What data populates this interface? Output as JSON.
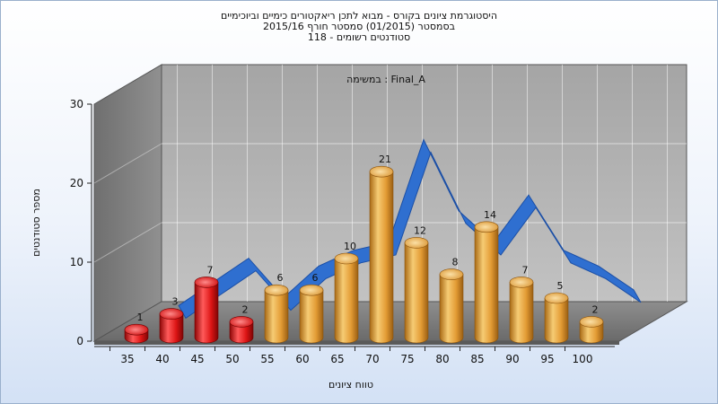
{
  "title_lines": [
    "היסטוגרמת ציונים בקורס - מבוא לתכן ריאקטורים כימיים וביוכימיים",
    "בסמסטר  (01/2015)  סמסטר חורף 2015/16",
    "סטודנטים רשומים - 118"
  ],
  "chart_data": {
    "type": "bar",
    "annotation": "במשימה : Final_A",
    "xlabel": "טווח ציונים",
    "ylabel": "מספר סטודנטים",
    "ylim": [
      0,
      30
    ],
    "yticks": [
      0,
      10,
      20,
      30
    ],
    "categories": [
      "35",
      "40",
      "45",
      "50",
      "55",
      "60",
      "65",
      "70",
      "75",
      "80",
      "85",
      "90",
      "95",
      "100"
    ],
    "values": [
      1,
      3,
      7,
      2,
      6,
      6,
      10,
      21,
      12,
      8,
      14,
      7,
      5,
      2
    ],
    "bar_colors": [
      "red",
      "red",
      "red",
      "red",
      "orange",
      "orange",
      "orange",
      "orange",
      "orange",
      "orange",
      "orange",
      "orange",
      "orange",
      "orange"
    ],
    "trend_line": {
      "x": [
        "40",
        "45",
        "50",
        "55",
        "60",
        "65",
        "70",
        "75",
        "80",
        "85",
        "90",
        "95",
        "100",
        "105"
      ],
      "values": [
        2,
        5,
        8,
        3,
        7,
        9,
        10,
        23,
        14,
        10,
        16,
        9,
        7,
        4
      ]
    },
    "grid": true,
    "colors": {
      "red": "#dd1111",
      "orange": "#e8a43c",
      "trend": "#2f6fd0"
    }
  }
}
